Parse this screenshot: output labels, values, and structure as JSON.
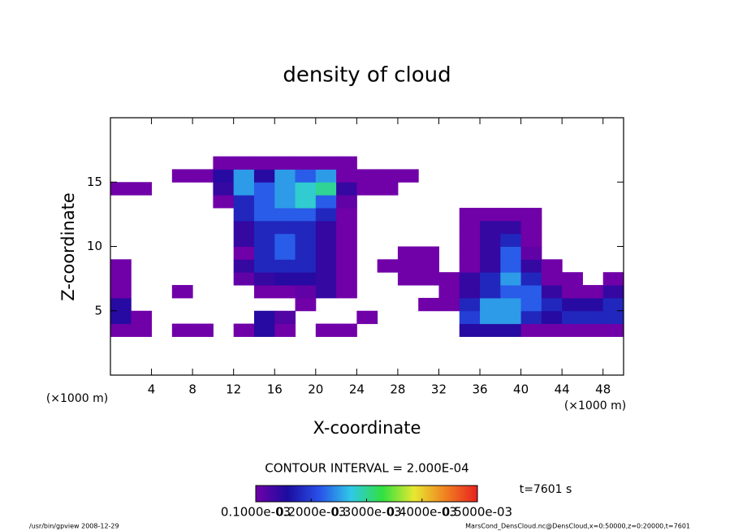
{
  "chart_data": {
    "type": "heatmap",
    "title": "density of cloud",
    "x_label": "X-coordinate",
    "y_label": "Z-coordinate",
    "x_unit_left": "(×1000 m)",
    "x_unit_right": "(×1000 m)",
    "contour_text": "CONTOUR INTERVAL = 2.000E-04",
    "time_text": "t=7601 s",
    "footer_left": "/usr/bin/gpview   2008-12-29",
    "footer_right": "MarsCond_DensCloud.nc@DensCloud,x=0:50000,z=0:20000,t=7601",
    "xlim": [
      0,
      50
    ],
    "ylim": [
      0,
      20
    ],
    "xticks": [
      4,
      8,
      12,
      16,
      20,
      24,
      28,
      32,
      36,
      40,
      44,
      48
    ],
    "yticks": [
      5,
      10,
      15
    ],
    "x": [
      1,
      3,
      5,
      7,
      9,
      11,
      13,
      15,
      17,
      19,
      21,
      23,
      25,
      27,
      29,
      31,
      33,
      35,
      37,
      39,
      41,
      43,
      45,
      47,
      49
    ],
    "z": [
      0.5,
      1.5,
      2.5,
      3.5,
      4.5,
      5.5,
      6.5,
      7.5,
      8.5,
      9.5,
      10.5,
      11.5,
      12.5,
      13.5,
      14.5,
      15.5,
      16.5,
      17.5,
      18.5,
      19.5
    ],
    "values": [
      [
        0,
        0,
        0,
        0,
        0,
        0,
        0,
        0,
        0,
        0,
        0,
        0,
        0,
        0,
        0,
        0,
        0,
        0,
        0,
        0,
        0,
        0,
        0,
        0,
        0
      ],
      [
        0,
        0,
        0,
        0,
        0,
        0,
        0,
        0,
        0,
        0,
        0,
        0,
        0,
        0,
        0,
        0,
        0,
        0,
        0,
        0,
        0,
        0,
        0,
        0,
        0
      ],
      [
        0,
        0,
        0,
        0,
        0,
        0,
        0,
        0,
        0,
        0,
        0,
        0,
        0,
        0,
        0,
        0,
        0,
        0,
        0,
        0,
        0,
        0,
        0,
        0,
        0
      ],
      [
        0.0001,
        0.0001,
        0,
        0.0001,
        0.0001,
        0,
        0.0001,
        0.00015,
        0.0001,
        0,
        0.0001,
        0.0001,
        0,
        0,
        0,
        0,
        0,
        0.00015,
        0.00015,
        0.00015,
        0.0001,
        0.0001,
        0.0001,
        0.0001,
        0.0001
      ],
      [
        0.00015,
        0.0001,
        0,
        0,
        0,
        0,
        0,
        0.00015,
        0.00012,
        0,
        0,
        0,
        0.0001,
        0,
        0,
        0,
        0,
        0.0002,
        0.00025,
        0.00025,
        0.00018,
        0.00015,
        0.00018,
        0.00018,
        0.00018
      ],
      [
        0.00015,
        0,
        0,
        0,
        0,
        0,
        0,
        0,
        0,
        0.0001,
        0,
        0,
        0,
        0,
        0,
        0.0001,
        0.0001,
        0.00018,
        0.00025,
        0.00025,
        0.00022,
        0.00018,
        0.00015,
        0.00015,
        0.00018
      ],
      [
        0.0001,
        0,
        0,
        0.0001,
        0,
        0,
        0,
        0.0001,
        0.0001,
        0.00011,
        0.00014,
        0.0001,
        0,
        0,
        0,
        0,
        0.0001,
        0.00014,
        0.00018,
        0.00022,
        0.00022,
        0.00014,
        0.0001,
        0.0001,
        0.00014
      ],
      [
        0.0001,
        0,
        0,
        0,
        0,
        0,
        0.00011,
        0.00014,
        0.00015,
        0.00015,
        0.00014,
        0.0001,
        0,
        0,
        0.0001,
        0.0001,
        0.0001,
        0.00014,
        0.00018,
        0.00025,
        0.00018,
        0.0001,
        0.0001,
        0,
        0.0001
      ],
      [
        0.0001,
        0,
        0,
        0,
        0,
        0,
        0.00014,
        0.00018,
        0.00018,
        0.00018,
        0.00014,
        0.0001,
        0,
        0.0001,
        0.0001,
        0.0001,
        0,
        0.0001,
        0.00014,
        0.00022,
        0.00014,
        0.0001,
        0,
        0,
        0
      ],
      [
        0,
        0,
        0,
        0,
        0,
        0,
        0.0001,
        0.00018,
        0.00022,
        0.00018,
        0.00014,
        0.0001,
        0,
        0,
        0.0001,
        0.0001,
        0,
        0.0001,
        0.00014,
        0.00022,
        0.00011,
        0,
        0,
        0,
        0
      ],
      [
        0,
        0,
        0,
        0,
        0,
        0,
        0.00014,
        0.00018,
        0.00022,
        0.00018,
        0.00014,
        0.0001,
        0,
        0,
        0,
        0,
        0,
        0.0001,
        0.00014,
        0.00018,
        0.0001,
        0,
        0,
        0,
        0
      ],
      [
        0,
        0,
        0,
        0,
        0,
        0,
        0.00014,
        0.00018,
        0.00018,
        0.00018,
        0.00014,
        0.0001,
        0,
        0,
        0,
        0,
        0,
        0.0001,
        0.00014,
        0.00014,
        0.0001,
        0,
        0,
        0,
        0
      ],
      [
        0,
        0,
        0,
        0,
        0,
        0,
        0.00018,
        0.00022,
        0.00022,
        0.00022,
        0.00018,
        0.0001,
        0,
        0,
        0,
        0,
        0,
        0.0001,
        0.0001,
        0.0001,
        0.0001,
        0,
        0,
        0,
        0
      ],
      [
        0,
        0,
        0,
        0,
        0,
        0.0001,
        0.00018,
        0.00022,
        0.00025,
        0.00028,
        0.00022,
        0.00011,
        0,
        0,
        0,
        0,
        0,
        0,
        0,
        0,
        0,
        0,
        0,
        0,
        0
      ],
      [
        0.0001,
        0.0001,
        0,
        0,
        0,
        0.00014,
        0.00025,
        0.00022,
        0.00025,
        0.00028,
        0.0003,
        0.00014,
        0.0001,
        0.0001,
        0,
        0,
        0,
        0,
        0,
        0,
        0,
        0,
        0,
        0,
        0
      ],
      [
        0,
        0,
        0,
        0.0001,
        0.0001,
        0.00015,
        0.00025,
        0.00015,
        0.00025,
        0.00022,
        0.00025,
        0.0001,
        0.0001,
        0.0001,
        0.0001,
        0,
        0,
        0,
        0,
        0,
        0,
        0,
        0,
        0,
        0
      ],
      [
        0,
        0,
        0,
        0,
        0,
        0.0001,
        0.0001,
        0.0001,
        0.0001,
        0.0001,
        0.0001,
        0.0001,
        0,
        0,
        0,
        0,
        0,
        0,
        0,
        0,
        0,
        0,
        0,
        0,
        0
      ],
      [
        0,
        0,
        0,
        0,
        0,
        0,
        0,
        0,
        0,
        0,
        0,
        0,
        0,
        0,
        0,
        0,
        0,
        0,
        0,
        0,
        0,
        0,
        0,
        0,
        0
      ],
      [
        0,
        0,
        0,
        0,
        0,
        0,
        0,
        0,
        0,
        0,
        0,
        0,
        0,
        0,
        0,
        0,
        0,
        0,
        0,
        0,
        0,
        0,
        0,
        0,
        0
      ],
      [
        0,
        0,
        0,
        0,
        0,
        0,
        0,
        0,
        0,
        0,
        0,
        0,
        0,
        0,
        0,
        0,
        0,
        0,
        0,
        0,
        0,
        0,
        0,
        0,
        0
      ]
    ],
    "clim": [
      0.0001,
      0.0005
    ],
    "colormap": [
      "#7000a8",
      "#1c0ca0",
      "#2850e8",
      "#30c8e8",
      "#30e040",
      "#e8e830",
      "#f08020",
      "#e82020"
    ],
    "colorbar_ticks": [
      {
        "value": 0.0001,
        "label": "0.1000e-03"
      },
      {
        "value": 0.0002,
        "label": "0.2000e-03"
      },
      {
        "value": 0.0003,
        "label": "0.3000e-03"
      },
      {
        "value": 0.0004,
        "label": "0.4000e-03"
      },
      {
        "value": 0.0005,
        "label": "0.5000e-03"
      }
    ]
  }
}
